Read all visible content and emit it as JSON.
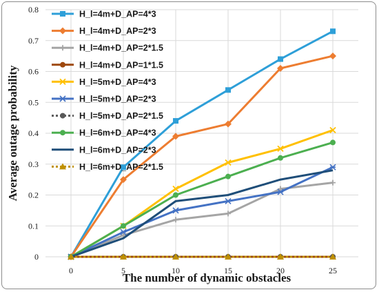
{
  "chart_data": {
    "type": "line",
    "title": "",
    "xlabel": "The number of dynamic obstacles",
    "ylabel": "Average outage probability",
    "x": [
      0,
      5,
      10,
      15,
      20,
      25
    ],
    "xticks": [
      "0",
      "5",
      "10",
      "15",
      "20",
      "25"
    ],
    "yticks": [
      "0",
      "0.1",
      "0.2",
      "0.3",
      "0.4",
      "0.5",
      "0.6",
      "0.7",
      "0.8"
    ],
    "ylim": [
      0,
      0.8
    ],
    "grid": true,
    "legend_position": "top-left",
    "series": [
      {
        "name": "H_l=4m+D_AP=4*3",
        "color": "#2e9fd8",
        "marker": "square",
        "dashed": false,
        "values": [
          0,
          0.29,
          0.44,
          0.54,
          0.64,
          0.73
        ]
      },
      {
        "name": "H_l=4m+D_AP=2*3",
        "color": "#ed7d31",
        "marker": "diamond",
        "dashed": false,
        "values": [
          0,
          0.25,
          0.39,
          0.43,
          0.61,
          0.65
        ]
      },
      {
        "name": "H_l=4m+D_AP=2*1.5",
        "color": "#a5a5a5",
        "marker": "plus",
        "dashed": false,
        "values": [
          0,
          0.07,
          0.12,
          0.14,
          0.22,
          0.24
        ]
      },
      {
        "name": "H_l=4m+D_AP=1*1.5",
        "color": "#9e480e",
        "marker": "circle",
        "dashed": false,
        "values": [
          0,
          0,
          0,
          0,
          0,
          0
        ]
      },
      {
        "name": "H_l=5m+D_AP=4*3",
        "color": "#ffc000",
        "marker": "x",
        "dashed": false,
        "values": [
          0,
          0.1,
          0.22,
          0.305,
          0.35,
          0.41
        ]
      },
      {
        "name": "H_l=5m+D_AP=2*3",
        "color": "#4472c4",
        "marker": "star",
        "dashed": false,
        "values": [
          0,
          0.08,
          0.15,
          0.18,
          0.21,
          0.29
        ]
      },
      {
        "name": "H_l=5m+D_AP=2*1.5",
        "color": "#595959",
        "marker": "circle",
        "dashed": true,
        "values": [
          0,
          0,
          0,
          0,
          0,
          0
        ]
      },
      {
        "name": "H_l=6m+D_AP=4*3",
        "color": "#4caf50",
        "marker": "circle",
        "dashed": false,
        "values": [
          0,
          0.1,
          0.2,
          0.26,
          0.32,
          0.37
        ]
      },
      {
        "name": "H_l=6m+D_AP=2*3",
        "color": "#1f4e79",
        "marker": "none",
        "dashed": false,
        "values": [
          0,
          0.06,
          0.18,
          0.2,
          0.25,
          0.28
        ]
      },
      {
        "name": "H_l=6m+D_AP=2*1.5",
        "color": "#bf9000",
        "marker": "triangle",
        "dashed": true,
        "values": [
          0,
          0,
          0,
          0,
          0,
          0
        ]
      }
    ]
  }
}
